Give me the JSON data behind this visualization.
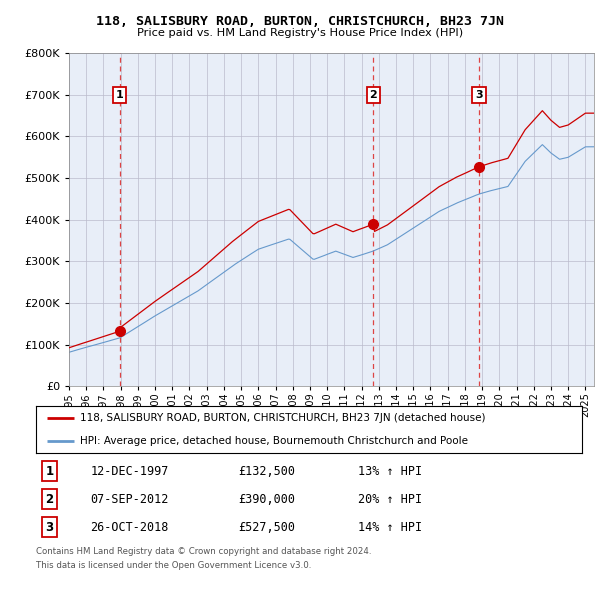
{
  "title": "118, SALISBURY ROAD, BURTON, CHRISTCHURCH, BH23 7JN",
  "subtitle": "Price paid vs. HM Land Registry's House Price Index (HPI)",
  "ylim": [
    0,
    800000
  ],
  "xlim_start": 1995.0,
  "xlim_end": 2025.5,
  "sales": [
    {
      "year": 1997.95,
      "price": 132500,
      "label": "1"
    },
    {
      "year": 2012.68,
      "price": 390000,
      "label": "2"
    },
    {
      "year": 2018.82,
      "price": 527500,
      "label": "3"
    }
  ],
  "sale_table": [
    {
      "num": "1",
      "date": "12-DEC-1997",
      "price": "£132,500",
      "hpi": "13% ↑ HPI"
    },
    {
      "num": "2",
      "date": "07-SEP-2012",
      "price": "£390,000",
      "hpi": "20% ↑ HPI"
    },
    {
      "num": "3",
      "date": "26-OCT-2018",
      "price": "£527,500",
      "hpi": "14% ↑ HPI"
    }
  ],
  "legend_line1": "118, SALISBURY ROAD, BURTON, CHRISTCHURCH, BH23 7JN (detached house)",
  "legend_line2": "HPI: Average price, detached house, Bournemouth Christchurch and Poole",
  "footer1": "Contains HM Land Registry data © Crown copyright and database right 2024.",
  "footer2": "This data is licensed under the Open Government Licence v3.0.",
  "red_color": "#cc0000",
  "blue_color": "#6699cc",
  "dashed_color": "#dd4444",
  "box_color": "#cc0000",
  "grid_color": "#bbbbcc",
  "plot_bg": "#e8eef8",
  "bg_color": "#ffffff"
}
